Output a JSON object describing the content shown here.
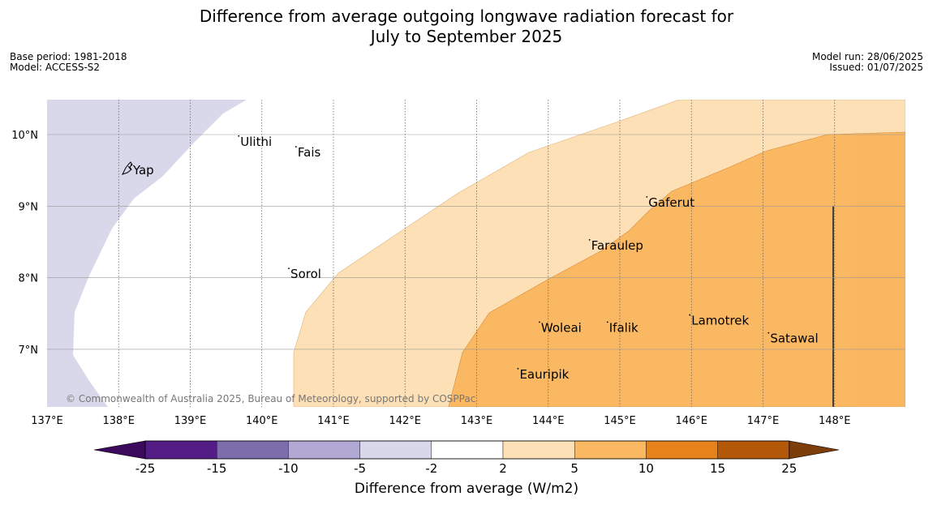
{
  "title": {
    "line1": "Difference from average outgoing longwave radiation forecast for",
    "line2": "July to September 2025"
  },
  "meta_left": {
    "base_period": "Base period: 1981-2018",
    "model": "Model: ACCESS-S2"
  },
  "meta_right": {
    "model_run": "Model run: 28/06/2025",
    "issued": "Issued: 01/07/2025"
  },
  "map": {
    "lon_range": [
      137,
      149
    ],
    "lat_range": [
      6.2,
      10.5
    ],
    "lon_ticks": [
      "137°E",
      "138°E",
      "139°E",
      "140°E",
      "141°E",
      "142°E",
      "143°E",
      "144°E",
      "145°E",
      "146°E",
      "147°E",
      "148°E"
    ],
    "lat_ticks": [
      "7°N",
      "8°N",
      "9°N",
      "10°N"
    ],
    "places": [
      {
        "name": "Yap",
        "lon": 138.2,
        "lat": 9.5
      },
      {
        "name": "Ulithi",
        "lon": 139.7,
        "lat": 9.9
      },
      {
        "name": "Fais",
        "lon": 140.5,
        "lat": 9.75
      },
      {
        "name": "Gaferut",
        "lon": 145.4,
        "lat": 9.05
      },
      {
        "name": "Faraulep",
        "lon": 144.6,
        "lat": 8.45
      },
      {
        "name": "Sorol",
        "lon": 140.4,
        "lat": 8.05
      },
      {
        "name": "Lamotrek",
        "lon": 146.0,
        "lat": 7.4
      },
      {
        "name": "Woleai",
        "lon": 143.9,
        "lat": 7.3
      },
      {
        "name": "Ifalik",
        "lon": 144.85,
        "lat": 7.3
      },
      {
        "name": "Satawal",
        "lon": 147.1,
        "lat": 7.15
      },
      {
        "name": "Eauripik",
        "lon": 143.6,
        "lat": 6.65
      }
    ],
    "credit": "© Commonwealth of Australia 2025, Bureau of Meteorology, supported by COSPPac",
    "colors": {
      "neg_2_5": "#d8d8ea",
      "pos_2_5": "#fde0b5",
      "pos_5_10": "#fbb862"
    }
  },
  "colorbar": {
    "label": "Difference from average (W/m2)",
    "ticks": [
      "-25",
      "-15",
      "-10",
      "-5",
      "-2",
      "2",
      "5",
      "10",
      "15",
      "25"
    ],
    "colors": [
      "#541c85",
      "#7d6dab",
      "#b1a9d3",
      "#d8d8ea",
      "#ffffff",
      "#fde0b5",
      "#fbb862",
      "#e5821a",
      "#b35708"
    ],
    "extend_colors": {
      "low": "#3c0a5c",
      "high": "#7e3e0a"
    }
  }
}
